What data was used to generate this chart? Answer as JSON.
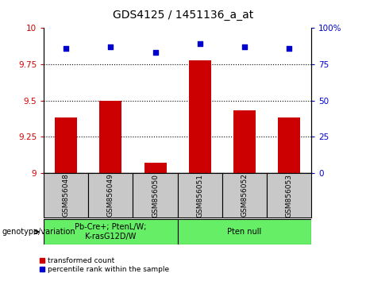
{
  "title": "GDS4125 / 1451136_a_at",
  "samples": [
    "GSM856048",
    "GSM856049",
    "GSM856050",
    "GSM856051",
    "GSM856052",
    "GSM856053"
  ],
  "red_values": [
    9.38,
    9.5,
    9.07,
    9.78,
    9.43,
    9.38
  ],
  "blue_values": [
    86,
    87,
    83,
    89,
    87,
    86
  ],
  "ylim_left": [
    9.0,
    10.0
  ],
  "ylim_right": [
    0,
    100
  ],
  "yticks_left": [
    9.0,
    9.25,
    9.5,
    9.75,
    10.0
  ],
  "yticks_right": [
    0,
    25,
    50,
    75,
    100
  ],
  "ytick_labels_left": [
    "9",
    "9.25",
    "9.5",
    "9.75",
    "10"
  ],
  "ytick_labels_right": [
    "0",
    "25",
    "50",
    "75",
    "100%"
  ],
  "groups": [
    {
      "label": "Pb-Cre+; PtenL/W;\nK-rasG12D/W",
      "indices": [
        0,
        1,
        2
      ],
      "color": "#66EE66"
    },
    {
      "label": "Pten null",
      "indices": [
        3,
        4,
        5
      ],
      "color": "#66EE66"
    }
  ],
  "group_label": "genotype/variation",
  "legend_red": "transformed count",
  "legend_blue": "percentile rank within the sample",
  "bar_color": "#CC0000",
  "dot_color": "#0000CC",
  "sample_bg_color": "#C8C8C8",
  "plot_bg": "#FFFFFF",
  "grid_color": "#000000",
  "left_label_color": "#CC0000",
  "right_label_color": "#0000CC",
  "bar_width": 0.5,
  "dot_size": 20,
  "title_fontsize": 10,
  "tick_fontsize": 7.5,
  "sample_fontsize": 6.5,
  "geno_fontsize": 7,
  "legend_fontsize": 6.5
}
